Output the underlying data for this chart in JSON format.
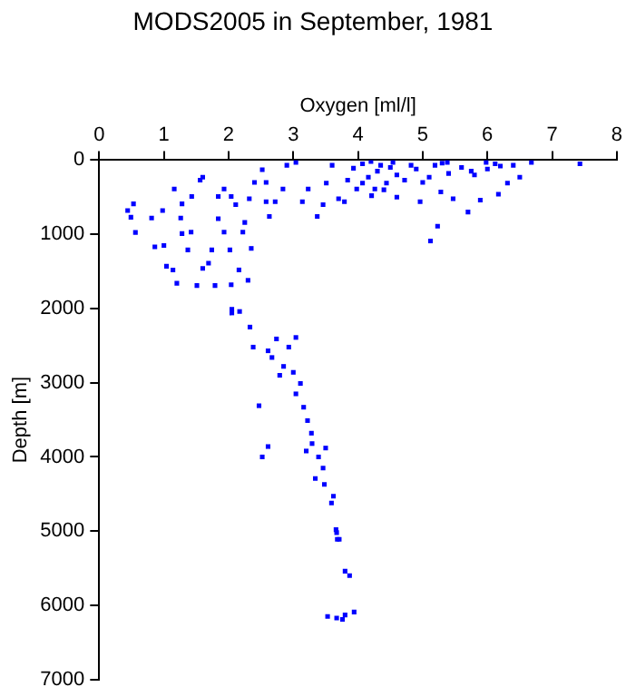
{
  "chart_data": {
    "type": "scatter",
    "title": "MODS2005 in September, 1981",
    "xlabel": "Oxygen [ml/l]",
    "ylabel": "Depth [m]",
    "xlim": [
      0,
      8
    ],
    "xticks": [
      0,
      1,
      2,
      3,
      4,
      5,
      6,
      7,
      8
    ],
    "ylim": [
      7000,
      0
    ],
    "yticks": [
      0,
      1000,
      2000,
      3000,
      4000,
      5000,
      6000,
      7000
    ],
    "grid": false,
    "marker": "square",
    "series": [
      {
        "color": "#0000ff",
        "x": [
          0.44,
          0.53,
          0.49,
          0.56,
          0.81,
          0.98,
          1.16,
          1.28,
          1.43,
          1.56,
          1.6,
          1.26,
          1.28,
          1.42,
          1.37,
          0.86,
          1.0,
          1.04,
          1.14,
          1.2,
          1.51,
          1.6,
          1.69,
          1.79,
          1.84,
          1.84,
          1.93,
          2.04,
          2.11,
          1.74,
          2.02,
          1.93,
          2.25,
          2.22,
          2.35,
          2.16,
          2.3,
          2.04,
          2.32,
          2.4,
          2.52,
          2.58,
          2.58,
          2.63,
          2.72,
          2.84,
          2.9,
          3.04,
          3.14,
          3.23,
          3.37,
          3.46,
          3.51,
          3.6,
          3.7,
          3.84,
          3.93,
          3.98,
          4.07,
          4.16,
          4.21,
          4.35,
          4.44,
          4.54,
          4.72,
          4.82,
          4.96,
          5.1,
          5.19,
          5.28,
          5.23,
          5.12,
          5.38,
          5.47,
          5.7,
          5.75,
          5.89,
          5.98,
          6.12,
          6.17,
          6.31,
          6.4,
          6.5,
          6.68,
          7.43,
          4.07,
          4.26,
          3.79,
          4.2,
          4.3,
          4.5,
          4.6,
          4.9,
          5.0,
          5.3,
          5.6,
          5.8,
          6.0,
          6.2,
          4.4,
          4.6,
          5.4,
          2.05,
          2.05,
          2.17,
          2.33,
          2.38,
          2.61,
          2.74,
          3.04,
          2.93,
          2.67,
          2.85,
          3.0,
          2.79,
          3.11,
          3.04,
          2.47,
          3.16,
          3.22,
          3.28,
          3.29,
          3.2,
          2.61,
          2.52,
          3.39,
          3.5,
          3.46,
          3.34,
          3.48,
          3.62,
          3.59,
          3.66,
          3.68,
          3.67,
          3.71,
          3.8,
          3.87,
          3.67,
          3.53,
          3.8,
          3.94,
          3.76
        ],
        "values": [
          680,
          590,
          770,
          975,
          780,
          680,
          390,
          590,
          490,
          270,
          230,
          780,
          990,
          970,
          1210,
          1170,
          1150,
          1430,
          1480,
          1660,
          1690,
          1460,
          1390,
          1690,
          790,
          490,
          390,
          490,
          600,
          1210,
          1210,
          970,
          840,
          970,
          1190,
          1480,
          1620,
          1680,
          520,
          300,
          130,
          300,
          560,
          760,
          560,
          390,
          70,
          30,
          560,
          390,
          760,
          600,
          310,
          70,
          520,
          270,
          110,
          390,
          50,
          230,
          480,
          70,
          310,
          30,
          270,
          70,
          560,
          230,
          70,
          430,
          890,
          1090,
          30,
          520,
          700,
          150,
          540,
          30,
          50,
          460,
          310,
          70,
          230,
          30,
          50,
          310,
          390,
          560,
          20,
          150,
          100,
          200,
          120,
          300,
          40,
          100,
          200,
          120,
          80,
          400,
          500,
          180,
          2010,
          2060,
          2040,
          2250,
          2520,
          2570,
          2410,
          2390,
          2520,
          2660,
          2780,
          2860,
          2900,
          3010,
          3150,
          3310,
          3330,
          3510,
          3680,
          3820,
          3920,
          3860,
          4000,
          4000,
          3880,
          4150,
          4290,
          4370,
          4530,
          4620,
          4980,
          5110,
          5020,
          5110,
          5540,
          5600,
          6170,
          6150,
          6130,
          6090,
          6190
        ]
      }
    ]
  }
}
